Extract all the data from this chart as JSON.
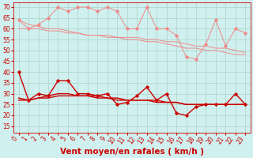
{
  "background_color": "#cff0ee",
  "grid_color": "#b0d8d0",
  "xlabel": "Vent moyen/en rafales ( km/h )",
  "xlim": [
    -0.5,
    23.5
  ],
  "ylim": [
    12,
    72
  ],
  "yticks": [
    15,
    20,
    25,
    30,
    35,
    40,
    45,
    50,
    55,
    60,
    65,
    70
  ],
  "xticks": [
    0,
    1,
    2,
    3,
    4,
    5,
    6,
    7,
    8,
    9,
    10,
    11,
    12,
    13,
    14,
    15,
    16,
    17,
    18,
    19,
    20,
    21,
    22,
    23
  ],
  "x": [
    0,
    1,
    2,
    3,
    4,
    5,
    6,
    7,
    8,
    9,
    10,
    11,
    12,
    13,
    14,
    15,
    16,
    17,
    18,
    19,
    20,
    21,
    22,
    23
  ],
  "line1_y": [
    64,
    60,
    62,
    65,
    70,
    68,
    70,
    70,
    68,
    70,
    68,
    60,
    60,
    70,
    60,
    60,
    57,
    47,
    46,
    53,
    64,
    52,
    60,
    58
  ],
  "line1_color": "#f08888",
  "line2_y": [
    60,
    60,
    60,
    59,
    59,
    58,
    58,
    57,
    57,
    57,
    56,
    56,
    56,
    55,
    55,
    54,
    54,
    53,
    52,
    52,
    51,
    51,
    50,
    49
  ],
  "line2_color": "#f08888",
  "line3_y": [
    64,
    62,
    61,
    60,
    60,
    59,
    58,
    57,
    57,
    56,
    56,
    55,
    55,
    54,
    54,
    53,
    52,
    51,
    51,
    50,
    50,
    49,
    48,
    48
  ],
  "line3_color": "#f08888",
  "line4_y": [
    40,
    27,
    30,
    29,
    36,
    36,
    30,
    30,
    29,
    30,
    25,
    26,
    29,
    33,
    27,
    30,
    21,
    20,
    24,
    25,
    25,
    25,
    30,
    25
  ],
  "line4_color": "#cc0000",
  "line5_y": [
    27,
    27,
    28,
    28,
    29,
    29,
    29,
    29,
    28,
    28,
    28,
    27,
    27,
    27,
    27,
    26,
    26,
    25,
    25,
    25,
    25,
    25,
    25,
    25
  ],
  "line5_color": "#cc0000",
  "line6_y": [
    28,
    27,
    28,
    29,
    30,
    30,
    29,
    29,
    29,
    28,
    27,
    27,
    27,
    27,
    26,
    26,
    26,
    25,
    25,
    25,
    25,
    25,
    25,
    25
  ],
  "line6_color": "#cc0000",
  "tick_color": "#cc0000",
  "xlabel_color": "#cc0000",
  "xlabel_fontsize": 7.5,
  "tick_fontsize": 5.5,
  "marker": "D",
  "markersize": 1.8,
  "linewidth_thin": 0.7,
  "linewidth_thick": 1.0
}
